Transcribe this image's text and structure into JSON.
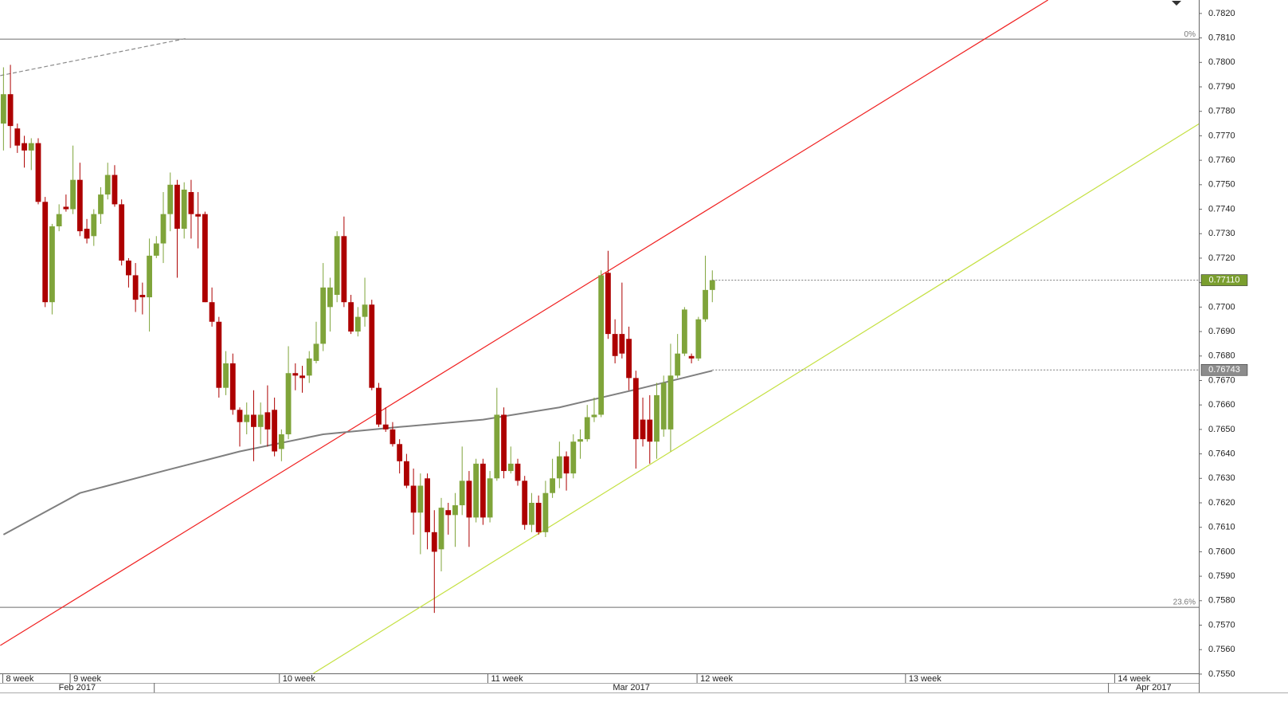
{
  "chart_data": {
    "type": "candlestick",
    "up_color": "#7fa43a",
    "down_color": "#ad0000",
    "xlim": [
      -0.5,
      172
    ],
    "ylim": [
      0.75503,
      0.78255
    ],
    "yticks": [
      {
        "value": 0.755,
        "label": "0.7550"
      },
      {
        "value": 0.756,
        "label": "0.7560"
      },
      {
        "value": 0.757,
        "label": "0.7570"
      },
      {
        "value": 0.758,
        "label": "0.7580"
      },
      {
        "value": 0.759,
        "label": "0.7590"
      },
      {
        "value": 0.76,
        "label": "0.7600"
      },
      {
        "value": 0.761,
        "label": "0.7610"
      },
      {
        "value": 0.762,
        "label": "0.7620"
      },
      {
        "value": 0.763,
        "label": "0.7630"
      },
      {
        "value": 0.764,
        "label": "0.7640"
      },
      {
        "value": 0.765,
        "label": "0.7650"
      },
      {
        "value": 0.766,
        "label": "0.7660"
      },
      {
        "value": 0.767,
        "label": "0.7670"
      },
      {
        "value": 0.768,
        "label": "0.7680"
      },
      {
        "value": 0.769,
        "label": "0.7690"
      },
      {
        "value": 0.77,
        "label": "0.7700"
      },
      {
        "value": 0.771,
        "label": "0.7710"
      },
      {
        "value": 0.772,
        "label": "0.7720"
      },
      {
        "value": 0.773,
        "label": "0.7730"
      },
      {
        "value": 0.774,
        "label": "0.7740"
      },
      {
        "value": 0.775,
        "label": "0.7750"
      },
      {
        "value": 0.776,
        "label": "0.7760"
      },
      {
        "value": 0.777,
        "label": "0.7770"
      },
      {
        "value": 0.778,
        "label": "0.7780"
      },
      {
        "value": 0.779,
        "label": "0.7790"
      },
      {
        "value": 0.78,
        "label": "0.7800"
      },
      {
        "value": 0.781,
        "label": "0.7810"
      },
      {
        "value": 0.782,
        "label": "0.7820"
      }
    ],
    "open": [
      0.7775,
      0.7787,
      0.7773,
      0.7767,
      0.7764,
      0.7767,
      0.7743,
      0.7702,
      0.7733,
      0.7741,
      0.774,
      0.7752,
      0.7732,
      0.7729,
      0.7738,
      0.7746,
      0.7754,
      0.7742,
      0.7719,
      0.7713,
      0.7705,
      0.7704,
      0.7721,
      0.7726,
      0.7738,
      0.775,
      0.7732,
      0.7747,
      0.7738,
      0.7738,
      0.7702,
      0.7694,
      0.7667,
      0.7677,
      0.7658,
      0.7653,
      0.7656,
      0.7651,
      0.7657,
      0.7658,
      0.7642,
      0.7648,
      0.7673,
      0.7672,
      0.7672,
      0.7678,
      0.7685,
      0.77,
      0.7705,
      0.7729,
      0.7702,
      0.769,
      0.7696,
      0.7701,
      0.7667,
      0.7652,
      0.765,
      0.7644,
      0.7637,
      0.7627,
      0.7616,
      0.763,
      0.7608,
      0.7601,
      0.7617,
      0.7615,
      0.7619,
      0.7629,
      0.7614,
      0.7636,
      0.7614,
      0.763,
      0.7656,
      0.7633,
      0.7636,
      0.7629,
      0.7611,
      0.762,
      0.7608,
      0.7624,
      0.763,
      0.7639,
      0.7632,
      0.7645,
      0.7646,
      0.7655,
      0.7656,
      0.7714,
      0.7689,
      0.7689,
      0.7687,
      0.7671,
      0.7654,
      0.7654,
      0.7645,
      0.765,
      0.765,
      0.7672,
      0.7681,
      0.768,
      0.7679,
      0.7695,
      0.7707
    ],
    "high": [
      0.7798,
      0.7799,
      0.7775,
      0.777,
      0.7769,
      0.7769,
      0.7745,
      0.7734,
      0.7742,
      0.7746,
      0.7766,
      0.7759,
      0.7736,
      0.774,
      0.7749,
      0.7759,
      0.7758,
      0.7744,
      0.772,
      0.7718,
      0.771,
      0.7728,
      0.7729,
      0.7747,
      0.7755,
      0.7752,
      0.7751,
      0.7752,
      0.7747,
      0.7739,
      0.7708,
      0.7696,
      0.7682,
      0.7681,
      0.7659,
      0.7661,
      0.7666,
      0.7661,
      0.7668,
      0.7663,
      0.765,
      0.7684,
      0.7677,
      0.7676,
      0.7682,
      0.7694,
      0.7718,
      0.7712,
      0.7731,
      0.7737,
      0.7705,
      0.77,
      0.7712,
      0.7703,
      0.7669,
      0.7659,
      0.7653,
      0.7646,
      0.764,
      0.7634,
      0.7632,
      0.7632,
      0.7617,
      0.7622,
      0.762,
      0.7624,
      0.7643,
      0.7633,
      0.7638,
      0.7638,
      0.7633,
      0.7667,
      0.7659,
      0.7643,
      0.7638,
      0.7631,
      0.7624,
      0.7623,
      0.7629,
      0.7638,
      0.7645,
      0.7641,
      0.7648,
      0.765,
      0.766,
      0.7663,
      0.7715,
      0.7723,
      0.7695,
      0.771,
      0.7692,
      0.7674,
      0.7663,
      0.7664,
      0.7669,
      0.7672,
      0.7685,
      0.7689,
      0.77,
      0.7681,
      0.7696,
      0.7721,
      0.7715
    ],
    "low": [
      0.7764,
      0.7765,
      0.7763,
      0.7757,
      0.7756,
      0.7742,
      0.77,
      0.7697,
      0.7731,
      0.7739,
      0.7738,
      0.7729,
      0.7726,
      0.7725,
      0.7734,
      0.7744,
      0.7741,
      0.7717,
      0.7708,
      0.7698,
      0.7697,
      0.769,
      0.772,
      0.7718,
      0.7731,
      0.7712,
      0.7728,
      0.7728,
      0.7724,
      0.7702,
      0.7692,
      0.7663,
      0.7664,
      0.7656,
      0.7643,
      0.7648,
      0.7637,
      0.7644,
      0.7643,
      0.7639,
      0.7637,
      0.7646,
      0.7666,
      0.7665,
      0.7669,
      0.7677,
      0.7682,
      0.769,
      0.7702,
      0.77,
      0.7689,
      0.7688,
      0.7692,
      0.7666,
      0.7651,
      0.7649,
      0.7643,
      0.7632,
      0.7626,
      0.7607,
      0.7599,
      0.7601,
      0.7575,
      0.7592,
      0.7607,
      0.7602,
      0.7615,
      0.7602,
      0.7612,
      0.7611,
      0.7612,
      0.7629,
      0.763,
      0.7632,
      0.7627,
      0.7609,
      0.7608,
      0.7607,
      0.7606,
      0.7622,
      0.7626,
      0.7625,
      0.763,
      0.7638,
      0.7645,
      0.7653,
      0.7655,
      0.7687,
      0.7677,
      0.7679,
      0.7666,
      0.7634,
      0.7643,
      0.7636,
      0.7638,
      0.7647,
      0.7641,
      0.7671,
      0.768,
      0.7677,
      0.7678,
      0.7694,
      0.7702
    ],
    "close": [
      0.7787,
      0.7774,
      0.7766,
      0.7764,
      0.7767,
      0.7743,
      0.7702,
      0.7733,
      0.7738,
      0.774,
      0.7752,
      0.7731,
      0.7728,
      0.7738,
      0.7746,
      0.7754,
      0.7742,
      0.7719,
      0.7713,
      0.7703,
      0.7704,
      0.7721,
      0.7726,
      0.7738,
      0.775,
      0.7732,
      0.7748,
      0.7738,
      0.7737,
      0.7702,
      0.7694,
      0.7667,
      0.7677,
      0.7658,
      0.7653,
      0.7656,
      0.7651,
      0.7656,
      0.765,
      0.7641,
      0.7648,
      0.7673,
      0.7672,
      0.7671,
      0.7679,
      0.7685,
      0.7708,
      0.7708,
      0.7729,
      0.7702,
      0.769,
      0.7696,
      0.7701,
      0.7667,
      0.7652,
      0.765,
      0.7644,
      0.7637,
      0.7627,
      0.7616,
      0.7627,
      0.7608,
      0.76,
      0.7618,
      0.7615,
      0.7619,
      0.7629,
      0.7614,
      0.7636,
      0.7614,
      0.763,
      0.7656,
      0.7633,
      0.7636,
      0.7629,
      0.7611,
      0.762,
      0.7608,
      0.7624,
      0.763,
      0.7639,
      0.7632,
      0.7645,
      0.7646,
      0.7655,
      0.7656,
      0.7713,
      0.7689,
      0.768,
      0.7681,
      0.7671,
      0.7646,
      0.7646,
      0.7645,
      0.7664,
      0.7669,
      0.7672,
      0.7681,
      0.7699,
      0.7679,
      0.7695,
      0.7707,
      0.7711
    ],
    "moving_average": {
      "color": "#7f7f7f",
      "x": [
        0,
        11,
        23,
        34,
        46,
        57,
        69,
        80,
        92,
        102
      ],
      "values": [
        0.7607,
        0.7624,
        0.7633,
        0.7641,
        0.7648,
        0.7651,
        0.7654,
        0.7659,
        0.7667,
        0.7674
      ]
    },
    "trendlines": [
      {
        "color": "#f02020",
        "dashed": false,
        "x": [
          -0.46,
          150.3
        ],
        "values": [
          0.75617,
          0.78255
        ]
      },
      {
        "color": "#c4e040",
        "dashed": false,
        "x": [
          44.6,
          172.1
        ],
        "values": [
          0.75503,
          0.7775
        ]
      },
      {
        "color": "#8a8a8a",
        "dashed": true,
        "x": [
          -0.46,
          26.5
        ],
        "values": [
          0.77946,
          0.78099
        ]
      }
    ],
    "fib_levels": [
      {
        "value": 0.78095,
        "label": "0%"
      },
      {
        "value": 0.75773,
        "label": "23.6%"
      }
    ],
    "price_tags": [
      {
        "value": 0.7711,
        "label": "0.77110",
        "color": "#7a9e2e"
      },
      {
        "value": 0.76743,
        "label": "0.76743",
        "color": "#8c8c8c"
      }
    ],
    "week_markers": {
      "x": [
        -0.1,
        9.6,
        39.7,
        69.7,
        99.8,
        129.8,
        159.9
      ],
      "labels": [
        "8 week",
        "9 week",
        "10 week",
        "11 week",
        "12 week",
        "13 week",
        "14 week"
      ]
    },
    "months": {
      "separators": [
        21.7,
        159.0
      ],
      "labels": [
        "Feb 2017",
        "Mar 2017",
        "Apr 2017"
      ]
    }
  }
}
